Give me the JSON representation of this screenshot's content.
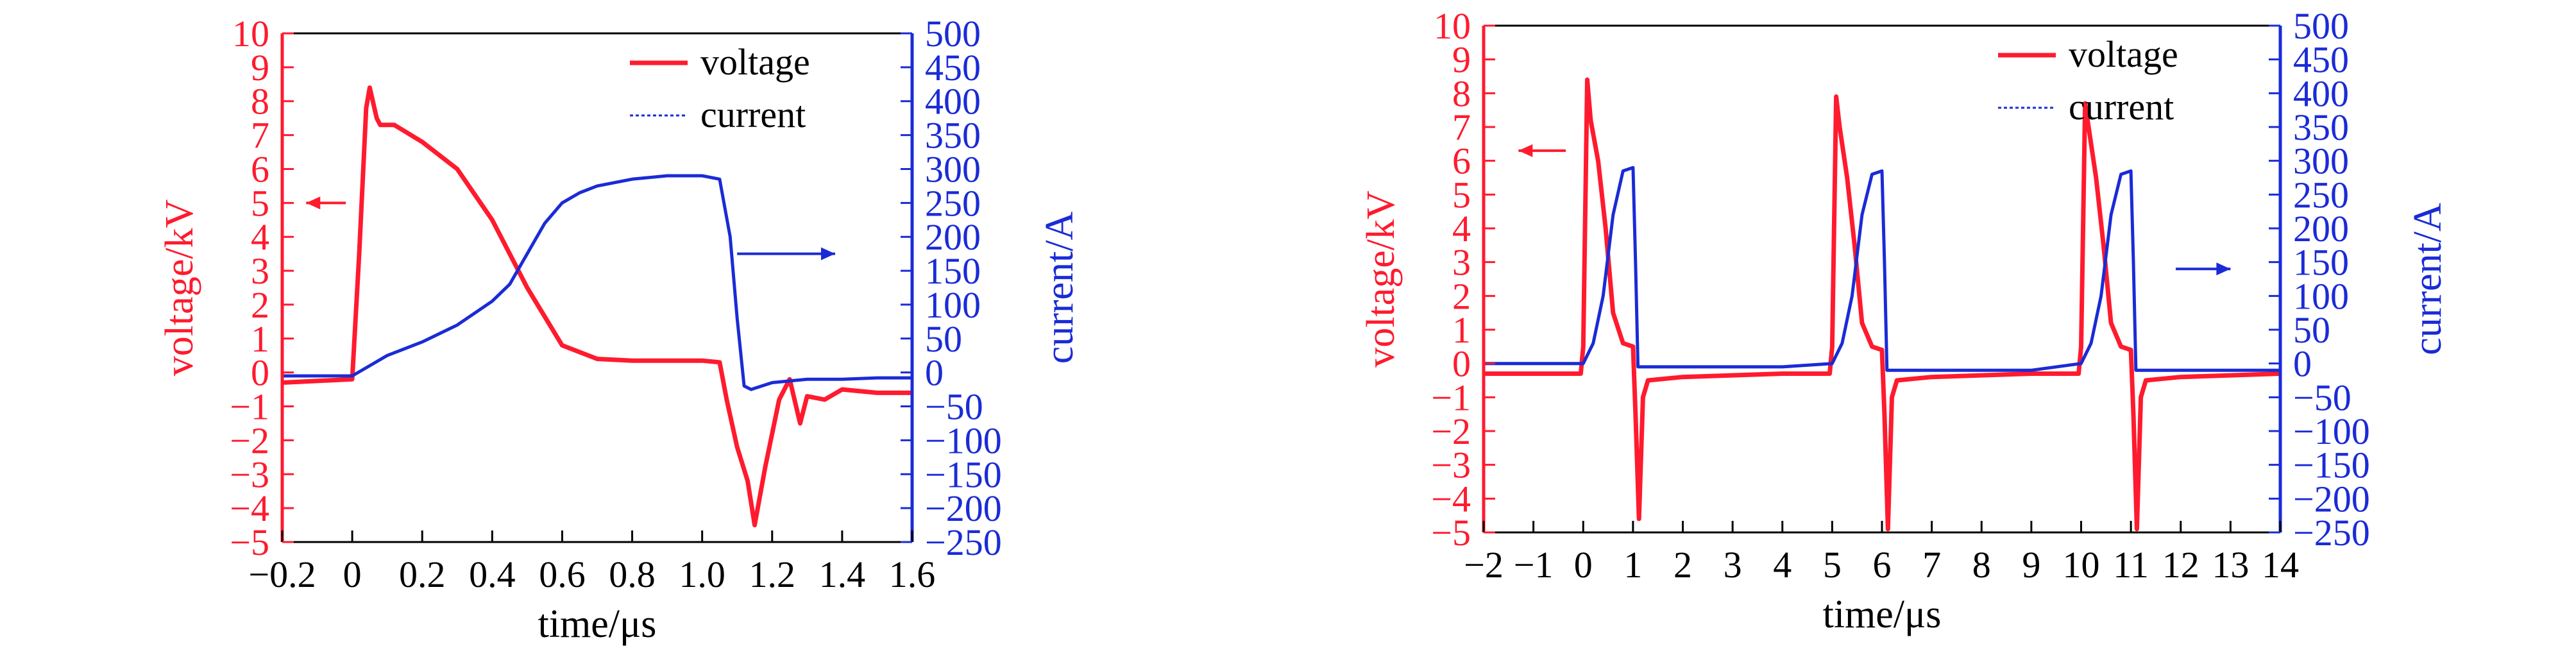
{
  "colors": {
    "voltage": "#ff1a2e",
    "current": "#1a2bd6",
    "axis": "#000000"
  },
  "chart_data": [
    {
      "type": "line",
      "xlabel": "time/μs",
      "ylabel_left": "voltage/kV",
      "ylabel_right": "current/A",
      "xlim": [
        -0.2,
        1.6
      ],
      "ylim_left": [
        -5,
        10
      ],
      "ylim_right": [
        -250,
        500
      ],
      "x_ticks": [
        "−0.2",
        "0",
        "0.2",
        "0.4",
        "0.6",
        "0.8",
        "1.0",
        "1.2",
        "1.4",
        "1.6"
      ],
      "y_left_ticks": [
        "−5",
        "−4",
        "−3",
        "−2",
        "−1",
        "0",
        "1",
        "2",
        "3",
        "4",
        "5",
        "6",
        "7",
        "8",
        "9",
        "10"
      ],
      "y_right_ticks": [
        "−250",
        "−200",
        "−150",
        "−100",
        "−50",
        "0",
        "50",
        "100",
        "150",
        "200",
        "250",
        "300",
        "350",
        "400",
        "450",
        "500"
      ],
      "grid": false,
      "legend_position": "top-right",
      "series": [
        {
          "name": "voltage",
          "axis": "left",
          "x": [
            -0.2,
            0.0,
            0.02,
            0.04,
            0.05,
            0.07,
            0.08,
            0.12,
            0.2,
            0.3,
            0.4,
            0.5,
            0.6,
            0.7,
            0.8,
            0.9,
            1.0,
            1.05,
            1.07,
            1.1,
            1.13,
            1.15,
            1.18,
            1.22,
            1.25,
            1.28,
            1.3,
            1.35,
            1.4,
            1.5,
            1.6
          ],
          "y": [
            -0.3,
            -0.2,
            3.5,
            7.8,
            8.4,
            7.5,
            7.3,
            7.3,
            6.8,
            6.0,
            4.5,
            2.5,
            0.8,
            0.4,
            0.35,
            0.35,
            0.35,
            0.3,
            -0.8,
            -2.2,
            -3.2,
            -4.5,
            -2.8,
            -0.8,
            -0.2,
            -1.5,
            -0.7,
            -0.8,
            -0.5,
            -0.6,
            -0.6
          ]
        },
        {
          "name": "current",
          "axis": "right",
          "x": [
            -0.2,
            0.0,
            0.05,
            0.1,
            0.2,
            0.3,
            0.4,
            0.45,
            0.5,
            0.55,
            0.6,
            0.65,
            0.7,
            0.8,
            0.9,
            1.0,
            1.05,
            1.08,
            1.1,
            1.12,
            1.14,
            1.2,
            1.3,
            1.4,
            1.5,
            1.6
          ],
          "y": [
            -5,
            -5,
            10,
            25,
            45,
            70,
            105,
            130,
            175,
            220,
            250,
            265,
            275,
            285,
            290,
            290,
            285,
            200,
            80,
            -20,
            -25,
            -15,
            -10,
            -10,
            -8,
            -8
          ]
        }
      ]
    },
    {
      "type": "line",
      "xlabel": "time/μs",
      "ylabel_left": "voltage/kV",
      "ylabel_right": "current/A",
      "xlim": [
        -2,
        14
      ],
      "ylim_left": [
        -5,
        10
      ],
      "ylim_right": [
        -250,
        500
      ],
      "x_ticks": [
        "−2",
        "−1",
        "0",
        "1",
        "2",
        "3",
        "4",
        "5",
        "6",
        "7",
        "8",
        "9",
        "10",
        "11",
        "12",
        "13",
        "14"
      ],
      "y_left_ticks": [
        "−5",
        "−4",
        "−3",
        "−2",
        "−1",
        "0",
        "1",
        "2",
        "3",
        "4",
        "5",
        "6",
        "7",
        "8",
        "9",
        "10"
      ],
      "y_right_ticks": [
        "−250",
        "−200",
        "−150",
        "−100",
        "−50",
        "0",
        "50",
        "100",
        "150",
        "200",
        "250",
        "300",
        "350",
        "400",
        "450",
        "500"
      ],
      "grid": false,
      "legend_position": "top-right",
      "series": [
        {
          "name": "voltage",
          "axis": "left",
          "x": [
            -2,
            -0.05,
            0,
            0.08,
            0.15,
            0.3,
            0.45,
            0.6,
            0.8,
            1.0,
            1.05,
            1.12,
            1.2,
            1.3,
            2.0,
            3.0,
            4.0,
            4.95,
            5.0,
            5.08,
            5.15,
            5.3,
            5.45,
            5.6,
            5.8,
            6.0,
            6.05,
            6.12,
            6.2,
            6.3,
            7.0,
            8.0,
            9.0,
            9.95,
            10.0,
            10.08,
            10.15,
            10.3,
            10.45,
            10.6,
            10.8,
            11.0,
            11.05,
            11.12,
            11.2,
            11.3,
            12.0,
            13.0,
            14.0
          ],
          "y": [
            -0.3,
            -0.3,
            0.5,
            8.4,
            7.2,
            6.0,
            4.0,
            1.5,
            0.6,
            0.5,
            -1.5,
            -4.6,
            -1.0,
            -0.5,
            -0.4,
            -0.35,
            -0.3,
            -0.3,
            0.5,
            7.9,
            7.0,
            5.5,
            3.5,
            1.2,
            0.5,
            0.4,
            -1.5,
            -4.9,
            -1.0,
            -0.5,
            -0.4,
            -0.35,
            -0.3,
            -0.3,
            0.5,
            7.7,
            7.0,
            5.5,
            3.5,
            1.2,
            0.5,
            0.4,
            -1.5,
            -4.9,
            -1.0,
            -0.5,
            -0.4,
            -0.35,
            -0.3
          ]
        },
        {
          "name": "current",
          "axis": "right",
          "x": [
            -2,
            0,
            0.2,
            0.4,
            0.6,
            0.8,
            1.0,
            1.05,
            1.1,
            1.2,
            2.0,
            3.0,
            4.0,
            5.0,
            5.2,
            5.4,
            5.6,
            5.8,
            6.0,
            6.05,
            6.1,
            6.2,
            7.0,
            8.0,
            9.0,
            10.0,
            10.2,
            10.4,
            10.6,
            10.8,
            11.0,
            11.05,
            11.1,
            11.2,
            12.0,
            13.0,
            14.0
          ],
          "y": [
            0,
            0,
            30,
            100,
            220,
            285,
            290,
            150,
            -5,
            -5,
            -5,
            -5,
            -5,
            0,
            30,
            100,
            220,
            280,
            285,
            150,
            -10,
            -10,
            -10,
            -10,
            -10,
            0,
            30,
            100,
            220,
            280,
            285,
            150,
            -10,
            -10,
            -10,
            -10,
            -10
          ]
        }
      ]
    }
  ]
}
